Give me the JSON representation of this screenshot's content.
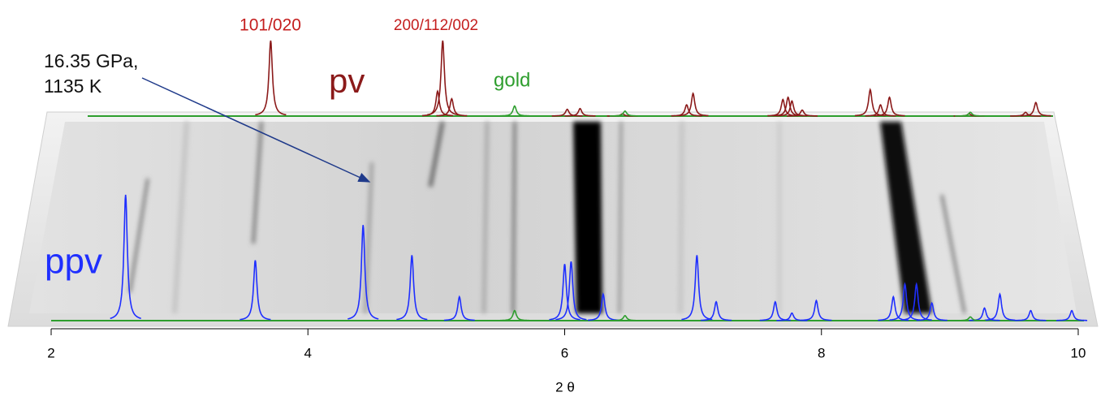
{
  "chart_data": {
    "type": "peaks",
    "xlim": [
      2,
      10
    ],
    "xticks": [
      2,
      4,
      6,
      8,
      10
    ],
    "xlabel": "2 θ",
    "annotations": [
      "101/020",
      "200/112/002",
      "16.35 GPa,",
      "1135 K"
    ],
    "series": [
      {
        "name": "ppv",
        "color": "#1f2fff",
        "x": [
          2.58,
          3.59,
          4.43,
          4.81,
          5.18,
          6.0,
          6.05,
          6.3,
          7.03,
          7.18,
          7.64,
          7.77,
          7.96,
          8.56,
          8.65,
          8.74,
          8.86,
          9.27,
          9.39,
          9.63,
          9.95
        ],
        "values": [
          100,
          48,
          76,
          52,
          19,
          45,
          47,
          21,
          52,
          15,
          15,
          6,
          16,
          19,
          29,
          29,
          14,
          10,
          21,
          8,
          8
        ]
      },
      {
        "name": "pv",
        "color": "#8b1a1a",
        "x": [
          3.71,
          5.01,
          5.05,
          5.12,
          6.02,
          6.12,
          6.45,
          6.95,
          7.0,
          7.7,
          7.74,
          7.77,
          7.85,
          8.38,
          8.46,
          8.53,
          9.15,
          9.59,
          9.67
        ],
        "values": [
          100,
          33,
          100,
          23,
          9,
          10,
          3,
          15,
          30,
          22,
          25,
          20,
          8,
          35,
          15,
          25,
          3,
          5,
          18
        ]
      },
      {
        "name": "gold",
        "color": "#2e9e2e",
        "x": [
          5.61,
          6.47,
          9.16
        ],
        "values": [
          8,
          4,
          3
        ]
      }
    ]
  }
}
